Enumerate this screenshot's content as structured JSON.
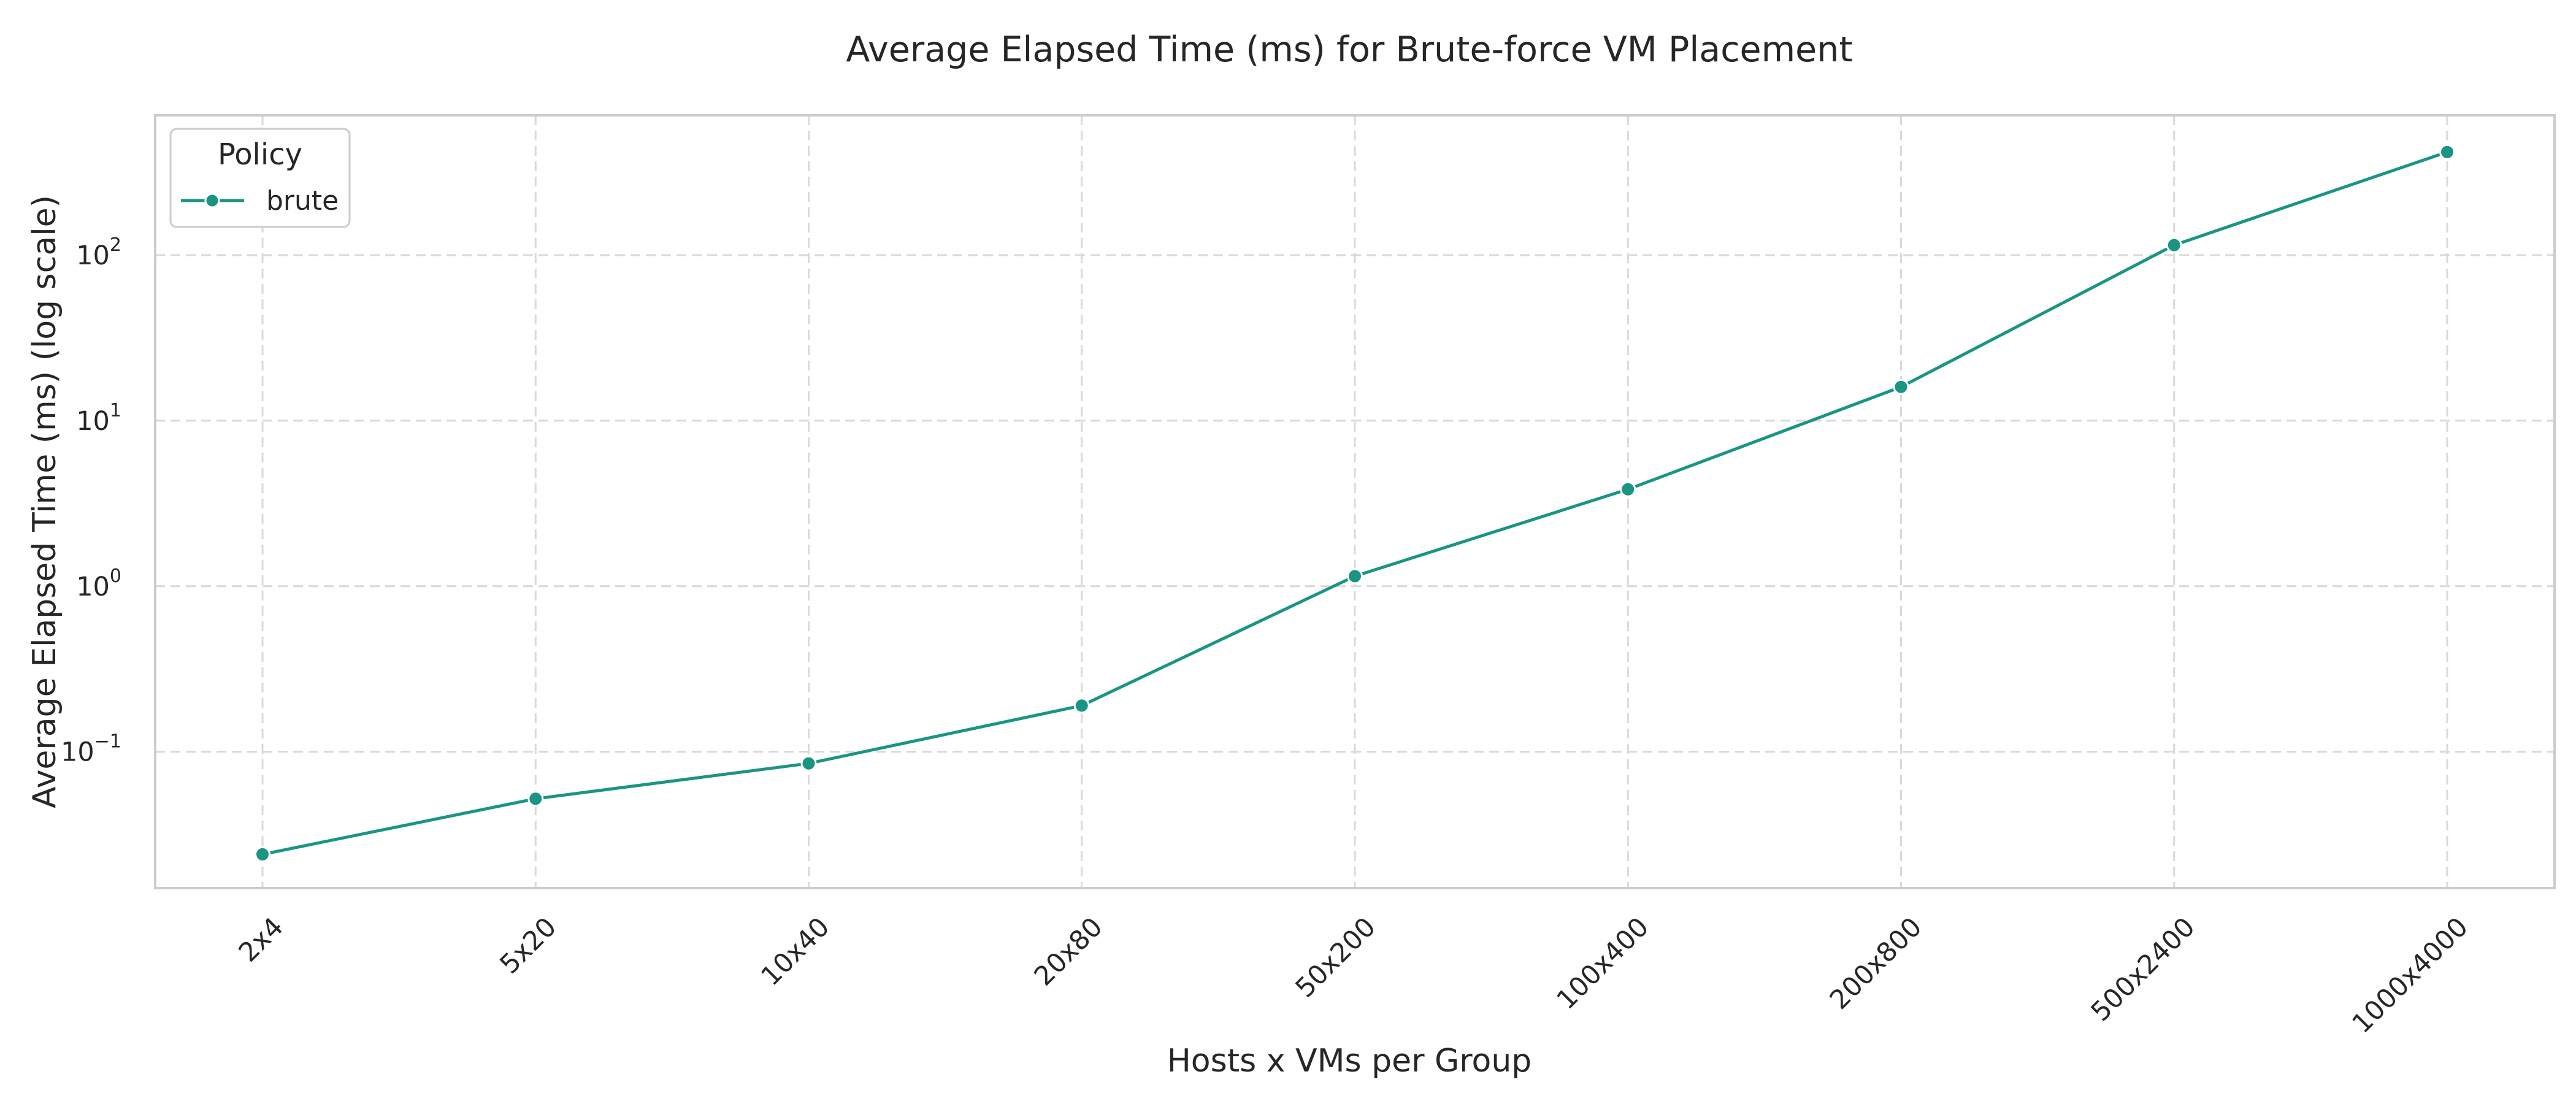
{
  "chart_data": {
    "type": "line",
    "title": "Average Elapsed Time (ms) for Brute-force VM Placement",
    "xlabel": "Hosts x VMs per Group",
    "ylabel": "Average Elapsed Time (ms) (log scale)",
    "y_scale": "log",
    "ylim": [
      0.015,
      700
    ],
    "y_ticks": [
      {
        "value": 0.1,
        "base": "10",
        "exp": "−1"
      },
      {
        "value": 1,
        "base": "10",
        "exp": "0"
      },
      {
        "value": 10,
        "base": "10",
        "exp": "1"
      },
      {
        "value": 100,
        "base": "10",
        "exp": "2"
      }
    ],
    "categories": [
      "2x4",
      "5x20",
      "10x40",
      "20x80",
      "50x200",
      "100x400",
      "200x800",
      "500x2400",
      "1000x4000"
    ],
    "series": [
      {
        "name": "brute",
        "color": "#1a9583",
        "marker": "circle",
        "values": [
          0.024,
          0.052,
          0.085,
          0.19,
          1.15,
          3.85,
          16,
          115,
          420
        ]
      }
    ],
    "grid": true,
    "grid_style": "dashed",
    "legend": {
      "title": "Policy",
      "placement": "top-left"
    }
  }
}
